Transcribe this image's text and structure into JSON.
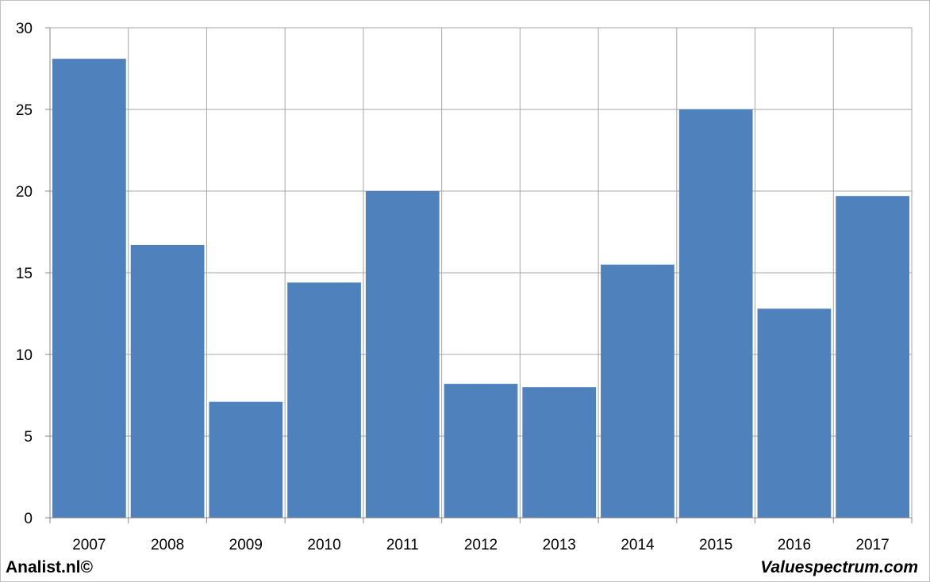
{
  "chart_data": {
    "type": "bar",
    "title": "",
    "xlabel": "",
    "ylabel": "",
    "categories": [
      "2007",
      "2008",
      "2009",
      "2010",
      "2011",
      "2012",
      "2013",
      "2014",
      "2015",
      "2016",
      "2017"
    ],
    "values": [
      28.1,
      16.7,
      7.1,
      14.4,
      20.0,
      8.2,
      8.0,
      15.5,
      25.0,
      12.8,
      19.7
    ],
    "ylim": [
      0,
      30
    ],
    "yticks": [
      0,
      5,
      10,
      15,
      20,
      25,
      30
    ],
    "grid": true,
    "bar_color": "#4f81bd",
    "grid_color": "#a6a6a6"
  },
  "footer": {
    "left": "Analist.nl©",
    "right": "Valuespectrum.com"
  }
}
